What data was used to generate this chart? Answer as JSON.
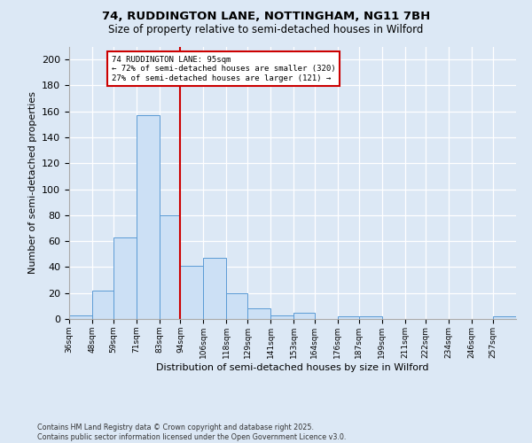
{
  "title1": "74, RUDDINGTON LANE, NOTTINGHAM, NG11 7BH",
  "title2": "Size of property relative to semi-detached houses in Wilford",
  "xlabel": "Distribution of semi-detached houses by size in Wilford",
  "ylabel": "Number of semi-detached properties",
  "bar_color": "#cce0f5",
  "bar_edgecolor": "#5b9bd5",
  "vline_x": 94,
  "vline_color": "#cc0000",
  "annotation_title": "74 RUDDINGTON LANE: 95sqm",
  "annotation_line1": "← 72% of semi-detached houses are smaller (320)",
  "annotation_line2": "27% of semi-detached houses are larger (121) →",
  "annotation_box_color": "#cc0000",
  "bins": [
    36,
    48,
    59,
    71,
    83,
    94,
    106,
    118,
    129,
    141,
    153,
    164,
    176,
    187,
    199,
    211,
    222,
    234,
    246,
    257,
    269
  ],
  "counts": [
    3,
    22,
    63,
    157,
    80,
    41,
    47,
    20,
    8,
    3,
    5,
    0,
    2,
    2,
    0,
    0,
    0,
    0,
    0,
    2
  ],
  "ylim": [
    0,
    210
  ],
  "yticks": [
    0,
    20,
    40,
    60,
    80,
    100,
    120,
    140,
    160,
    180,
    200
  ],
  "footnote1": "Contains HM Land Registry data © Crown copyright and database right 2025.",
  "footnote2": "Contains public sector information licensed under the Open Government Licence v3.0.",
  "background_color": "#dce8f5"
}
